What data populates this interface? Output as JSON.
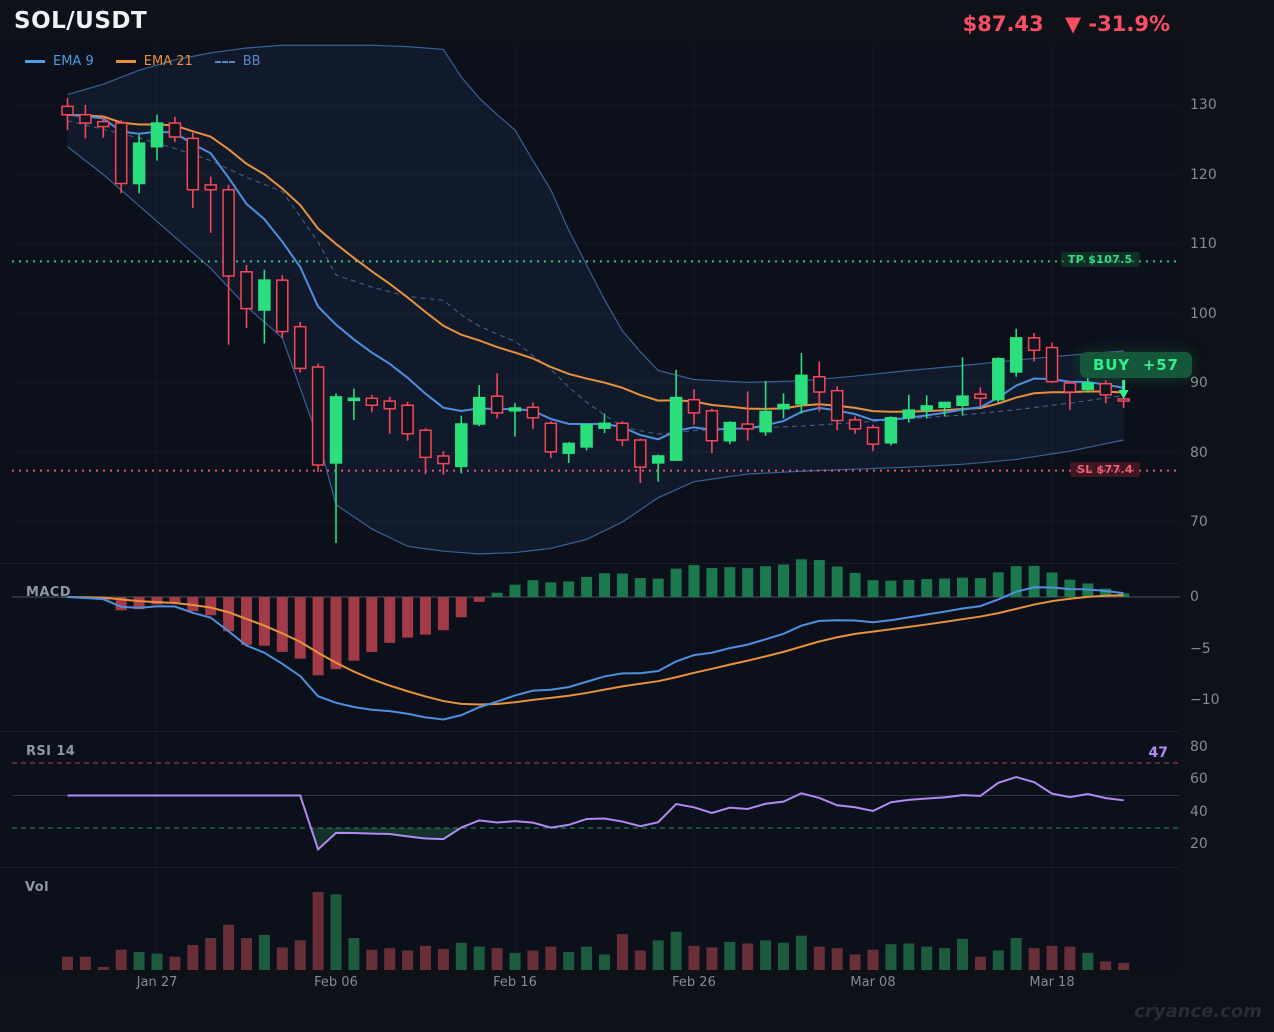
{
  "header": {
    "symbol": "SOL/USDT",
    "price": "$87.43",
    "change": "▼ -31.9%"
  },
  "legend": [
    {
      "label": "EMA 9",
      "color": "#539be2",
      "style": "solid"
    },
    {
      "label": "EMA 21",
      "color": "#e8913c",
      "style": "solid"
    },
    {
      "label": "BB",
      "color": "#5c85c7",
      "style": "dashed"
    }
  ],
  "panel_labels": {
    "macd": "MACD",
    "rsi": "RSI 14",
    "vol": "Vol"
  },
  "rsi_value": "47",
  "watermark": "cryance.com",
  "trade": {
    "tp_label": "TP $107.5",
    "tp_price": 107.5,
    "sl_label": "SL $77.4",
    "sl_price": 77.4,
    "signal_label": "BUY",
    "signal_value": "+57"
  },
  "axes": {
    "main_ticks": [
      130,
      120,
      110,
      100,
      90,
      80,
      70
    ],
    "macd_ticks": [
      {
        "v": 0,
        "t": "0"
      },
      {
        "v": -5,
        "t": "−5"
      },
      {
        "v": -10,
        "t": "−10"
      }
    ],
    "rsi_ticks": [
      80,
      60,
      40,
      20
    ],
    "rsi_guides": {
      "overbought": 70,
      "midline": 50,
      "oversold": 30
    },
    "x_ticks": [
      {
        "i": 5,
        "label": "Jan 27"
      },
      {
        "i": 15,
        "label": "Feb 06"
      },
      {
        "i": 25,
        "label": "Feb 16"
      },
      {
        "i": 35,
        "label": "Feb 26"
      },
      {
        "i": 45,
        "label": "Mar 08"
      },
      {
        "i": 55,
        "label": "Mar 18"
      }
    ]
  },
  "chart_data": {
    "type": "candlestick",
    "symbol": "SOL/USDT",
    "ylim": [
      64,
      140
    ],
    "overlays": [
      "EMA 9",
      "EMA 21",
      "BB"
    ],
    "sub_panels": [
      "MACD",
      "RSI 14",
      "Vol"
    ],
    "tp": 107.5,
    "sl": 77.4,
    "rsi_current": 47,
    "ohlc": [
      [
        129.8,
        131.0,
        126.4,
        128.6
      ],
      [
        128.6,
        130.0,
        125.2,
        127.4
      ],
      [
        127.6,
        128.3,
        125.3,
        126.9
      ],
      [
        127.4,
        127.8,
        117.3,
        118.7
      ],
      [
        118.7,
        125.7,
        117.3,
        124.5
      ],
      [
        124.0,
        128.6,
        122.0,
        127.4
      ],
      [
        127.4,
        128.3,
        124.7,
        125.4
      ],
      [
        125.2,
        126.0,
        115.2,
        117.8
      ],
      [
        118.5,
        119.7,
        111.6,
        117.8
      ],
      [
        117.8,
        118.5,
        95.5,
        105.4
      ],
      [
        106.0,
        107.0,
        97.9,
        100.7
      ],
      [
        100.5,
        106.3,
        95.7,
        104.8
      ],
      [
        104.8,
        105.5,
        96.5,
        97.4
      ],
      [
        98.1,
        98.8,
        91.5,
        92.1
      ],
      [
        92.3,
        92.8,
        77.2,
        78.2
      ],
      [
        78.5,
        88.5,
        67.0,
        88.0
      ],
      [
        87.5,
        89.2,
        84.7,
        87.8
      ],
      [
        87.8,
        88.3,
        85.8,
        86.8
      ],
      [
        87.4,
        88.0,
        82.7,
        86.3
      ],
      [
        86.8,
        87.3,
        81.7,
        82.7
      ],
      [
        83.2,
        83.5,
        76.9,
        79.3
      ],
      [
        79.5,
        80.2,
        76.8,
        78.4
      ],
      [
        78.0,
        85.3,
        77.0,
        84.1
      ],
      [
        84.1,
        89.7,
        83.8,
        87.9
      ],
      [
        88.1,
        91.4,
        84.9,
        85.7
      ],
      [
        86.0,
        87.1,
        82.3,
        86.4
      ],
      [
        86.5,
        87.2,
        83.4,
        85.0
      ],
      [
        84.2,
        84.5,
        79.2,
        80.1
      ],
      [
        79.9,
        81.5,
        78.5,
        81.3
      ],
      [
        80.8,
        84.2,
        80.3,
        84.0
      ],
      [
        83.5,
        85.6,
        82.8,
        84.2
      ],
      [
        84.2,
        84.5,
        80.9,
        81.8
      ],
      [
        81.8,
        82.0,
        75.6,
        77.9
      ],
      [
        78.5,
        79.7,
        75.8,
        79.5
      ],
      [
        78.9,
        91.9,
        78.9,
        87.9
      ],
      [
        87.6,
        89.1,
        84.0,
        85.7
      ],
      [
        86.0,
        86.3,
        79.9,
        81.7
      ],
      [
        81.7,
        84.5,
        81.2,
        84.3
      ],
      [
        84.1,
        88.8,
        81.7,
        83.4
      ],
      [
        83.0,
        90.3,
        82.4,
        85.9
      ],
      [
        86.3,
        88.5,
        84.9,
        86.9
      ],
      [
        87.0,
        94.3,
        85.6,
        91.1
      ],
      [
        90.9,
        93.1,
        85.9,
        88.7
      ],
      [
        88.9,
        89.5,
        83.2,
        84.6
      ],
      [
        84.7,
        85.2,
        82.7,
        83.4
      ],
      [
        83.6,
        84.0,
        80.2,
        81.2
      ],
      [
        81.4,
        85.2,
        81.0,
        85.0
      ],
      [
        85.0,
        88.3,
        84.3,
        86.1
      ],
      [
        86.1,
        88.2,
        84.9,
        86.7
      ],
      [
        86.5,
        87.2,
        85.2,
        87.2
      ],
      [
        86.8,
        93.7,
        85.3,
        88.1
      ],
      [
        88.4,
        89.4,
        86.6,
        87.8
      ],
      [
        87.6,
        93.7,
        87.2,
        93.5
      ],
      [
        91.6,
        97.8,
        90.9,
        96.5
      ],
      [
        96.5,
        97.2,
        93.1,
        94.7
      ],
      [
        95.1,
        95.8,
        90.0,
        90.2
      ],
      [
        90.0,
        90.3,
        86.1,
        88.7
      ],
      [
        89.1,
        90.7,
        88.6,
        90.0
      ],
      [
        89.9,
        90.4,
        87.1,
        88.3
      ],
      [
        87.7,
        88.7,
        86.4,
        87.4
      ]
    ],
    "volume": [
      17,
      17,
      4,
      26,
      23,
      21,
      17,
      32,
      41,
      58,
      41,
      45,
      29,
      38,
      100,
      97,
      41,
      26,
      28,
      25,
      31,
      27,
      35,
      30,
      28,
      22,
      25,
      30,
      23,
      30,
      20,
      46,
      25,
      38,
      49,
      31,
      29,
      36,
      34,
      38,
      35,
      44,
      30,
      28,
      20,
      26,
      33,
      34,
      30,
      28,
      40,
      17,
      25,
      41,
      28,
      31,
      30,
      22,
      11,
      9
    ],
    "bollinger_upper": [
      [
        0,
        131.5
      ],
      [
        2,
        133
      ],
      [
        4,
        135
      ],
      [
        6,
        136.5
      ],
      [
        8,
        137.5
      ],
      [
        10,
        138.2
      ],
      [
        12,
        138.6
      ],
      [
        15,
        138.6
      ],
      [
        17,
        138.6
      ],
      [
        19,
        138.4
      ],
      [
        21,
        138
      ],
      [
        22,
        134
      ],
      [
        23,
        131
      ],
      [
        24,
        128.6
      ],
      [
        25,
        126.4
      ],
      [
        26,
        122
      ],
      [
        27,
        117.8
      ],
      [
        28,
        112
      ],
      [
        29,
        107
      ],
      [
        30,
        102
      ],
      [
        31,
        97.5
      ],
      [
        32,
        94.5
      ],
      [
        33,
        91.8
      ],
      [
        35,
        90.5
      ],
      [
        38,
        90.1
      ],
      [
        41,
        90.3
      ],
      [
        44,
        91
      ],
      [
        47,
        91.8
      ],
      [
        50,
        92.5
      ],
      [
        53,
        93.3
      ],
      [
        56,
        94
      ],
      [
        59,
        94.6
      ]
    ],
    "bollinger_lower": [
      [
        0,
        124
      ],
      [
        2,
        120
      ],
      [
        4,
        115.5
      ],
      [
        6,
        111
      ],
      [
        8,
        106.5
      ],
      [
        10,
        101
      ],
      [
        12,
        96.5
      ],
      [
        14,
        82
      ],
      [
        15,
        72.5
      ],
      [
        17,
        69
      ],
      [
        19,
        66.5
      ],
      [
        21,
        65.8
      ],
      [
        23,
        65.4
      ],
      [
        25,
        65.6
      ],
      [
        27,
        66.2
      ],
      [
        29,
        67.5
      ],
      [
        31,
        70
      ],
      [
        33,
        73.5
      ],
      [
        35,
        75.8
      ],
      [
        38,
        76.9
      ],
      [
        41,
        77.3
      ],
      [
        44,
        77.6
      ],
      [
        47,
        77.9
      ],
      [
        50,
        78.3
      ],
      [
        53,
        79
      ],
      [
        56,
        80.2
      ],
      [
        59,
        81.8
      ]
    ]
  },
  "colors": {
    "up": "#2be07c",
    "down": "#f6465d",
    "ema9": "#4f8fe0",
    "ema21": "#e8913c",
    "bb": "#3f6ea8",
    "macd_line": "#4f8fe0",
    "macd_signal": "#e8913c",
    "hist_up": "#1a7a4e",
    "hist_down": "#a23b47",
    "rsi": "#b18af2",
    "vol_up": "#1c5b3e",
    "vol_down": "#692f38",
    "tp": "#35dc8a",
    "sl": "#f0607a",
    "accent_text": "#fb4d64",
    "buy_bg": "#15573b",
    "buy_text": "#31f08c"
  }
}
